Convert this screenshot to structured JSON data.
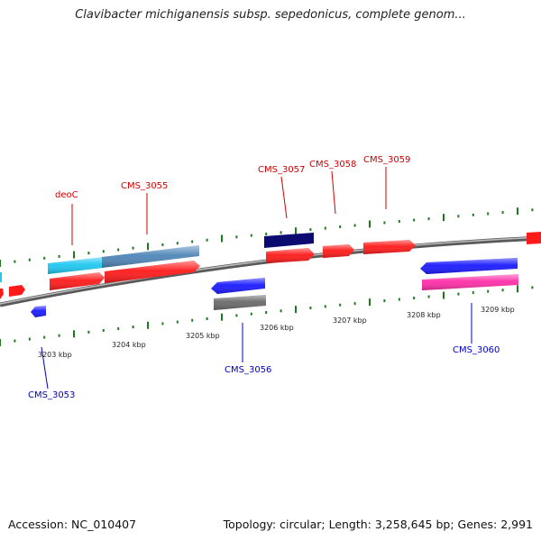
{
  "title": "Clavibacter michiganensis subsp. sepedonicus, complete genom...",
  "footer": {
    "accession": "Accession: NC_010407",
    "summary": "Topology: circular; Length: 3,258,645 bp; Genes: 2,991"
  },
  "colors": {
    "backbone": "#8c8c8c",
    "tick": "#1f7a1f",
    "red_label": "#d00000",
    "blue_label": "#0000c0",
    "red": "#ff1a1a",
    "blue": "#1a1aff",
    "navy": "#0a0a70",
    "cyan": "#1ec8f0",
    "steel": "#4f86b8",
    "grey": "#6a6a6a",
    "pink": "#ff2ea8"
  },
  "scale_labels": [
    "3203 kbp",
    "3204 kbp",
    "3205 kbp",
    "3206 kbp",
    "3207 kbp",
    "3208 kbp",
    "3209 kbp"
  ],
  "gene_labels": {
    "deoC": "deoC",
    "CMS_3055": "CMS_3055",
    "CMS_3057": "CMS_3057",
    "CMS_3058": "CMS_3058",
    "CMS_3059": "CMS_3059",
    "CMS_3053": "CMS_3053",
    "CMS_3056": "CMS_3056",
    "CMS_3060": "CMS_3060"
  }
}
